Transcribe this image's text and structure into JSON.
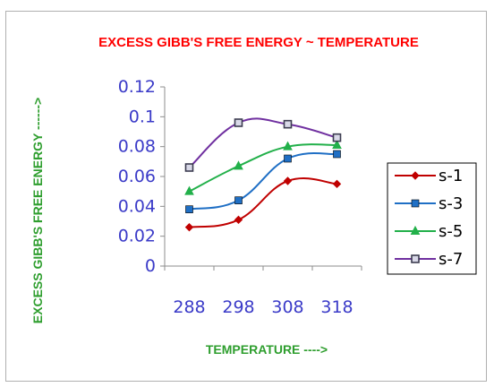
{
  "chart_data": {
    "type": "line",
    "title": "EXCESS GIBB'S FREE ENERGY ~  TEMPERATURE",
    "xlabel": "TEMPERATURE ---->",
    "ylabel": "EXCESS GIBB'S FREE ENERGY  ------>",
    "x": [
      288,
      298,
      308,
      318
    ],
    "x_tick_labels": [
      "288",
      "298",
      "308",
      "318"
    ],
    "ylim": [
      0,
      0.12
    ],
    "y_ticks": [
      0,
      0.02,
      0.04,
      0.06,
      0.08,
      0.1,
      0.12
    ],
    "y_tick_labels": [
      "0",
      "0.02",
      "0.04",
      "0.06",
      "0.08",
      "0.1",
      "0.12"
    ],
    "grid": false,
    "legend_position": "right",
    "series": [
      {
        "name": "s-1",
        "values": [
          0.026,
          0.031,
          0.057,
          0.055
        ],
        "color": "#c00000",
        "marker": "diamond"
      },
      {
        "name": "s-3",
        "values": [
          0.038,
          0.044,
          0.072,
          0.075
        ],
        "color": "#1f6fc5",
        "marker": "square"
      },
      {
        "name": "s-5",
        "values": [
          0.05,
          0.067,
          0.08,
          0.081
        ],
        "color": "#22b04a",
        "marker": "triangle"
      },
      {
        "name": "s-7",
        "values": [
          0.066,
          0.096,
          0.095,
          0.086
        ],
        "color": "#7030a0",
        "marker": "square-open"
      }
    ]
  }
}
